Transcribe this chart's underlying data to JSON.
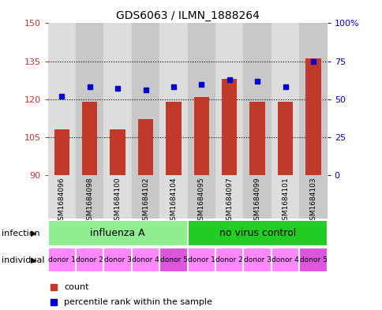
{
  "title": "GDS6063 / ILMN_1888264",
  "samples": [
    "GSM1684096",
    "GSM1684098",
    "GSM1684100",
    "GSM1684102",
    "GSM1684104",
    "GSM1684095",
    "GSM1684097",
    "GSM1684099",
    "GSM1684101",
    "GSM1684103"
  ],
  "bar_values": [
    108,
    119,
    108,
    112,
    119,
    121,
    128,
    119,
    119,
    136
  ],
  "dot_values": [
    52,
    58,
    57,
    56,
    58,
    60,
    63,
    62,
    58,
    75
  ],
  "ylim_left": [
    90,
    150
  ],
  "ylim_right": [
    0,
    100
  ],
  "yticks_left": [
    90,
    105,
    120,
    135,
    150
  ],
  "yticks_right": [
    0,
    25,
    50,
    75,
    100
  ],
  "bar_color": "#C0392B",
  "dot_color": "#0000CC",
  "infection_color_a": "#90EE90",
  "infection_color_b": "#22CC22",
  "individual_color_light": "#FF88FF",
  "individual_color_dark": "#DD55DD",
  "legend_count_color": "#C0392B",
  "legend_dot_color": "#0000CC",
  "tick_color_left": "#C0392B",
  "tick_color_right": "#0000CC",
  "col_bg_light": "#DDDDDD",
  "col_bg_dark": "#C8C8C8",
  "individual_labels": [
    "donor 1",
    "donor 2",
    "donor 3",
    "donor 4",
    "donor 5",
    "donor 1",
    "donor 2",
    "donor 3",
    "donor 4",
    "donor 5"
  ],
  "gridline_ticks": [
    105,
    120,
    135
  ]
}
